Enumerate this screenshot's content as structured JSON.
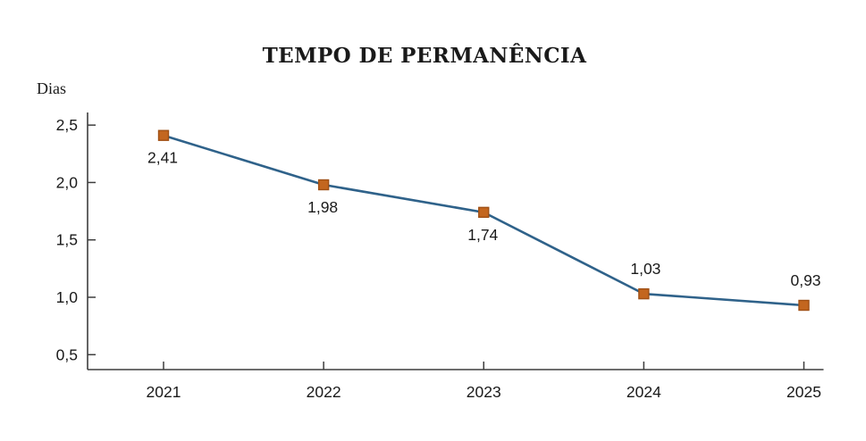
{
  "page": {
    "background": "#ffffff"
  },
  "chart": {
    "title": "TEMPO DE PERMANÊNCIA",
    "unit_label": "Dias"
  },
  "chart_data": {
    "type": "line",
    "title": "TEMPO DE PERMANÊNCIA",
    "xlabel": "",
    "ylabel": "Dias",
    "categories": [
      "2021",
      "2022",
      "2023",
      "2024",
      "2025"
    ],
    "values": [
      2.41,
      1.98,
      1.74,
      1.03,
      0.93
    ],
    "point_labels": [
      "2,41",
      "1,98",
      "1,74",
      "1,03",
      "0,93"
    ],
    "label_positions": [
      "below",
      "below",
      "below",
      "above",
      "above"
    ],
    "yticks": [
      0.5,
      1.0,
      1.5,
      2.0,
      2.5
    ],
    "ytick_labels": [
      "0,5",
      "1,0",
      "1,5",
      "2,0",
      "2,5"
    ],
    "ylim": [
      0.37,
      2.61
    ],
    "grid": false,
    "legend": null,
    "marker_shape": "square",
    "colors": {
      "line": "#2F628A",
      "marker_fill": "#C3661F",
      "marker_stroke": "#A05015",
      "axis": "#3D3D3D",
      "text": "#1A1A1A"
    }
  }
}
